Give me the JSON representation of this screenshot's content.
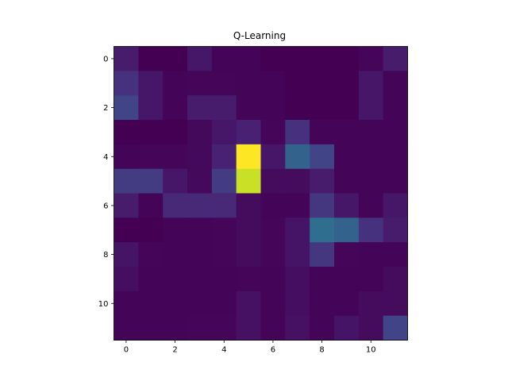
{
  "chart_data": {
    "type": "heatmap",
    "title": "Q-Learning",
    "xlabel": "",
    "ylabel": "",
    "colormap": "viridis",
    "x_ticks": [
      0,
      2,
      4,
      6,
      8,
      10
    ],
    "y_ticks": [
      0,
      2,
      4,
      6,
      8,
      10
    ],
    "x_range": [
      -0.5,
      11.5
    ],
    "y_range": [
      -0.5,
      11.5
    ],
    "grid": false,
    "legend": "none",
    "values": [
      [
        0.1,
        0.0,
        0.0,
        0.08,
        0.01,
        0.01,
        0.0,
        0.0,
        0.0,
        0.0,
        0.02,
        0.1
      ],
      [
        0.18,
        0.08,
        0.01,
        0.02,
        0.02,
        0.01,
        0.01,
        0.0,
        0.0,
        0.0,
        0.08,
        0.01
      ],
      [
        0.25,
        0.08,
        0.01,
        0.1,
        0.1,
        0.01,
        0.01,
        0.0,
        0.0,
        0.0,
        0.08,
        0.01
      ],
      [
        0.0,
        0.0,
        0.0,
        0.03,
        0.08,
        0.12,
        0.02,
        0.18,
        0.01,
        0.01,
        0.01,
        0.01
      ],
      [
        0.01,
        0.02,
        0.02,
        0.03,
        0.12,
        1.0,
        0.08,
        0.4,
        0.25,
        0.01,
        0.01,
        0.01
      ],
      [
        0.22,
        0.22,
        0.08,
        0.03,
        0.22,
        0.95,
        0.04,
        0.04,
        0.1,
        0.01,
        0.01,
        0.01
      ],
      [
        0.1,
        0.01,
        0.15,
        0.15,
        0.15,
        0.04,
        0.01,
        0.01,
        0.2,
        0.08,
        0.01,
        0.08
      ],
      [
        0.0,
        0.0,
        0.01,
        0.01,
        0.02,
        0.04,
        0.02,
        0.07,
        0.45,
        0.4,
        0.18,
        0.1
      ],
      [
        0.07,
        0.02,
        0.01,
        0.01,
        0.02,
        0.04,
        0.02,
        0.07,
        0.2,
        0.02,
        0.01,
        0.01
      ],
      [
        0.05,
        0.01,
        0.01,
        0.01,
        0.01,
        0.02,
        0.01,
        0.05,
        0.01,
        0.01,
        0.01,
        0.04
      ],
      [
        0.01,
        0.01,
        0.01,
        0.01,
        0.01,
        0.06,
        0.01,
        0.05,
        0.01,
        0.01,
        0.04,
        0.04
      ],
      [
        0.01,
        0.01,
        0.01,
        0.02,
        0.02,
        0.06,
        0.01,
        0.06,
        0.01,
        0.07,
        0.04,
        0.25
      ]
    ]
  }
}
